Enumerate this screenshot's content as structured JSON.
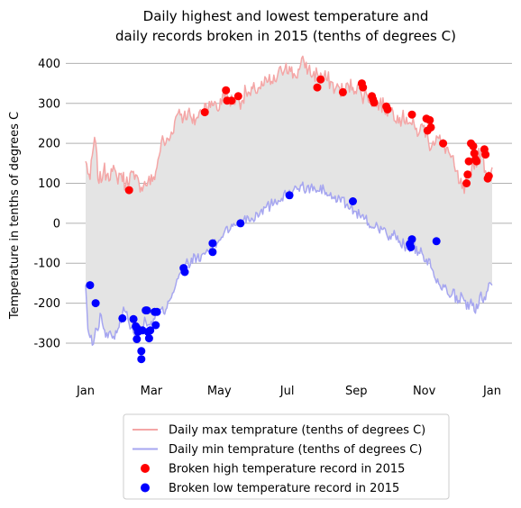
{
  "chart_data": {
    "type": "line",
    "title_lines": [
      "Daily highest and lowest temperature and",
      "daily records broken in 2015 (tenths of degrees C)"
    ],
    "xlabel": "",
    "ylabel": "Temperature in tenths of degrees C",
    "x_domain": [
      0,
      365
    ],
    "ylim": [
      -370,
      410
    ],
    "y_ticks": [
      -300,
      -200,
      -100,
      0,
      100,
      200,
      300,
      400
    ],
    "y_grid": true,
    "x_ticks": [
      {
        "day": 0,
        "label": "Jan"
      },
      {
        "day": 59,
        "label": "Mar"
      },
      {
        "day": 120,
        "label": "May"
      },
      {
        "day": 181,
        "label": "Jul"
      },
      {
        "day": 243,
        "label": "Sep"
      },
      {
        "day": 304,
        "label": "Nov"
      },
      {
        "day": 365,
        "label": "Jan"
      }
    ],
    "legend_placement": "below",
    "colors": {
      "max_line": "#f4a6a6",
      "min_line": "#a6a6f0",
      "fill": "#e4e4e4",
      "high_record": "#ff0000",
      "low_record": "#0000ff",
      "grid": "#b0b0b0"
    },
    "series": [
      {
        "name": "Daily max temprature (tenths of degrees C)",
        "kind": "line",
        "anchors": [
          [
            0,
            155
          ],
          [
            4,
            110
          ],
          [
            8,
            215
          ],
          [
            12,
            100
          ],
          [
            16,
            130
          ],
          [
            20,
            125
          ],
          [
            24,
            130
          ],
          [
            28,
            115
          ],
          [
            32,
            125
          ],
          [
            36,
            95
          ],
          [
            40,
            125
          ],
          [
            44,
            110
          ],
          [
            48,
            100
          ],
          [
            52,
            95
          ],
          [
            56,
            105
          ],
          [
            60,
            105
          ],
          [
            64,
            140
          ],
          [
            68,
            205
          ],
          [
            72,
            200
          ],
          [
            76,
            215
          ],
          [
            80,
            255
          ],
          [
            84,
            285
          ],
          [
            88,
            265
          ],
          [
            92,
            280
          ],
          [
            96,
            250
          ],
          [
            100,
            265
          ],
          [
            104,
            280
          ],
          [
            108,
            300
          ],
          [
            112,
            290
          ],
          [
            116,
            305
          ],
          [
            120,
            285
          ],
          [
            124,
            330
          ],
          [
            128,
            310
          ],
          [
            132,
            305
          ],
          [
            136,
            315
          ],
          [
            140,
            305
          ],
          [
            144,
            330
          ],
          [
            148,
            320
          ],
          [
            152,
            335
          ],
          [
            156,
            340
          ],
          [
            160,
            345
          ],
          [
            164,
            355
          ],
          [
            168,
            350
          ],
          [
            172,
            365
          ],
          [
            176,
            380
          ],
          [
            180,
            400
          ],
          [
            184,
            380
          ],
          [
            188,
            370
          ],
          [
            192,
            385
          ],
          [
            196,
            405
          ],
          [
            200,
            385
          ],
          [
            204,
            370
          ],
          [
            208,
            375
          ],
          [
            212,
            370
          ],
          [
            216,
            360
          ],
          [
            220,
            355
          ],
          [
            224,
            335
          ],
          [
            228,
            340
          ],
          [
            232,
            325
          ],
          [
            236,
            345
          ],
          [
            240,
            340
          ],
          [
            244,
            345
          ],
          [
            248,
            320
          ],
          [
            252,
            325
          ],
          [
            256,
            310
          ],
          [
            260,
            300
          ],
          [
            264,
            300
          ],
          [
            268,
            290
          ],
          [
            272,
            285
          ],
          [
            276,
            280
          ],
          [
            280,
            270
          ],
          [
            284,
            260
          ],
          [
            288,
            265
          ],
          [
            292,
            250
          ],
          [
            296,
            235
          ],
          [
            300,
            230
          ],
          [
            304,
            245
          ],
          [
            308,
            200
          ],
          [
            312,
            205
          ],
          [
            316,
            215
          ],
          [
            320,
            195
          ],
          [
            324,
            190
          ],
          [
            328,
            165
          ],
          [
            332,
            130
          ],
          [
            336,
            100
          ],
          [
            340,
            75
          ],
          [
            344,
            120
          ],
          [
            348,
            150
          ],
          [
            352,
            165
          ],
          [
            356,
            175
          ],
          [
            360,
            120
          ],
          [
            365,
            140
          ]
        ],
        "jitter": 22
      },
      {
        "name": "Daily min temprature (tenths of degrees C)",
        "kind": "line",
        "anchors": [
          [
            0,
            -155
          ],
          [
            2,
            -265
          ],
          [
            6,
            -305
          ],
          [
            10,
            -265
          ],
          [
            14,
            -230
          ],
          [
            18,
            -285
          ],
          [
            22,
            -270
          ],
          [
            26,
            -290
          ],
          [
            30,
            -260
          ],
          [
            34,
            -210
          ],
          [
            38,
            -240
          ],
          [
            42,
            -260
          ],
          [
            46,
            -285
          ],
          [
            50,
            -265
          ],
          [
            54,
            -245
          ],
          [
            58,
            -255
          ],
          [
            62,
            -240
          ],
          [
            66,
            -215
          ],
          [
            70,
            -225
          ],
          [
            74,
            -195
          ],
          [
            78,
            -175
          ],
          [
            82,
            -140
          ],
          [
            86,
            -120
          ],
          [
            90,
            -100
          ],
          [
            94,
            -105
          ],
          [
            98,
            -80
          ],
          [
            102,
            -95
          ],
          [
            106,
            -75
          ],
          [
            110,
            -70
          ],
          [
            114,
            -60
          ],
          [
            118,
            -50
          ],
          [
            122,
            -35
          ],
          [
            126,
            -10
          ],
          [
            130,
            -15
          ],
          [
            134,
            -5
          ],
          [
            138,
            0
          ],
          [
            142,
            10
          ],
          [
            146,
            15
          ],
          [
            150,
            10
          ],
          [
            154,
            25
          ],
          [
            158,
            35
          ],
          [
            162,
            40
          ],
          [
            166,
            45
          ],
          [
            170,
            60
          ],
          [
            174,
            55
          ],
          [
            178,
            75
          ],
          [
            182,
            65
          ],
          [
            186,
            80
          ],
          [
            190,
            85
          ],
          [
            194,
            95
          ],
          [
            198,
            80
          ],
          [
            202,
            90
          ],
          [
            206,
            85
          ],
          [
            210,
            80
          ],
          [
            214,
            85
          ],
          [
            218,
            70
          ],
          [
            222,
            65
          ],
          [
            226,
            55
          ],
          [
            230,
            65
          ],
          [
            234,
            45
          ],
          [
            238,
            40
          ],
          [
            242,
            30
          ],
          [
            246,
            20
          ],
          [
            250,
            10
          ],
          [
            254,
            0
          ],
          [
            258,
            -10
          ],
          [
            262,
            -5
          ],
          [
            266,
            -15
          ],
          [
            270,
            -25
          ],
          [
            274,
            -40
          ],
          [
            278,
            -30
          ],
          [
            282,
            -45
          ],
          [
            286,
            -55
          ],
          [
            290,
            -60
          ],
          [
            294,
            -50
          ],
          [
            298,
            -80
          ],
          [
            302,
            -75
          ],
          [
            306,
            -90
          ],
          [
            310,
            -110
          ],
          [
            314,
            -140
          ],
          [
            318,
            -155
          ],
          [
            322,
            -160
          ],
          [
            326,
            -180
          ],
          [
            330,
            -165
          ],
          [
            334,
            -200
          ],
          [
            338,
            -180
          ],
          [
            342,
            -215
          ],
          [
            346,
            -190
          ],
          [
            350,
            -225
          ],
          [
            354,
            -180
          ],
          [
            358,
            -185
          ],
          [
            362,
            -150
          ],
          [
            365,
            -155
          ]
        ],
        "jitter": 15
      },
      {
        "name": "Broken high temperature record in 2015",
        "kind": "scatter",
        "points": [
          [
            39,
            83
          ],
          [
            107,
            278
          ],
          [
            126,
            333
          ],
          [
            127,
            307
          ],
          [
            131,
            307
          ],
          [
            137,
            318
          ],
          [
            208,
            340
          ],
          [
            211,
            360
          ],
          [
            231,
            328
          ],
          [
            248,
            350
          ],
          [
            249,
            340
          ],
          [
            257,
            318
          ],
          [
            258,
            310
          ],
          [
            259,
            302
          ],
          [
            270,
            292
          ],
          [
            271,
            285
          ],
          [
            293,
            272
          ],
          [
            307,
            232
          ],
          [
            306,
            262
          ],
          [
            309,
            258
          ],
          [
            310,
            240
          ],
          [
            321,
            200
          ],
          [
            342,
            100
          ],
          [
            343,
            122
          ],
          [
            344,
            155
          ],
          [
            346,
            200
          ],
          [
            348,
            193
          ],
          [
            349,
            175
          ],
          [
            350,
            160
          ],
          [
            351,
            155
          ],
          [
            358,
            185
          ],
          [
            359,
            172
          ],
          [
            361,
            112
          ],
          [
            362,
            118
          ]
        ]
      },
      {
        "name": "Broken low temperature record in 2015",
        "kind": "scatter",
        "points": [
          [
            4,
            -155
          ],
          [
            9,
            -200
          ],
          [
            33,
            -238
          ],
          [
            43,
            -240
          ],
          [
            45,
            -258
          ],
          [
            46,
            -262
          ],
          [
            46,
            -290
          ],
          [
            47,
            -272
          ],
          [
            50,
            -320
          ],
          [
            50,
            -340
          ],
          [
            51,
            -268
          ],
          [
            54,
            -218
          ],
          [
            55,
            -218
          ],
          [
            56,
            -272
          ],
          [
            57,
            -288
          ],
          [
            58,
            -268
          ],
          [
            62,
            -222
          ],
          [
            63,
            -255
          ],
          [
            64,
            -222
          ],
          [
            88,
            -112
          ],
          [
            89,
            -122
          ],
          [
            114,
            -50
          ],
          [
            114,
            -72
          ],
          [
            139,
            0
          ],
          [
            183,
            70
          ],
          [
            240,
            55
          ],
          [
            291,
            -52
          ],
          [
            292,
            -60
          ],
          [
            293,
            -40
          ],
          [
            315,
            -45
          ]
        ]
      }
    ]
  }
}
